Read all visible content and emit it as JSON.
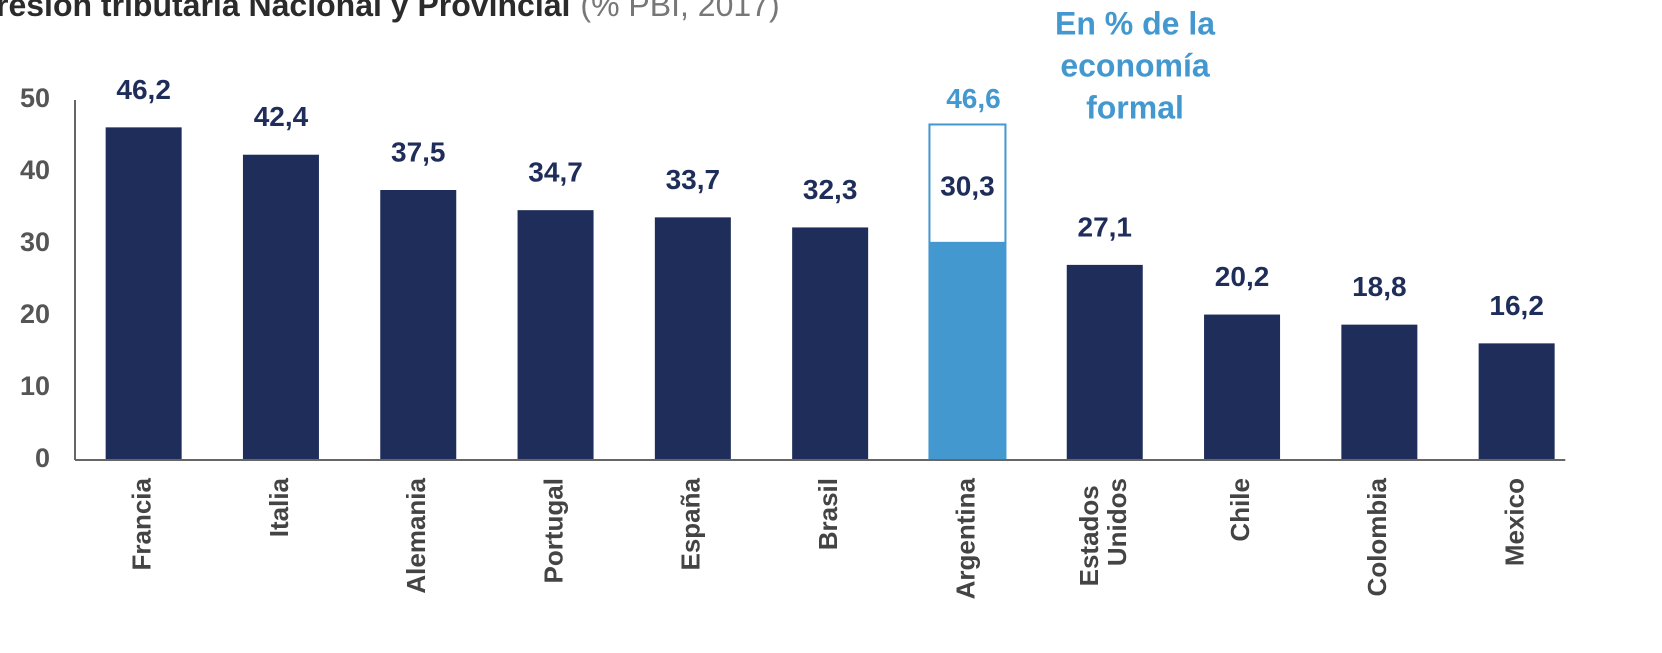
{
  "chart_data": {
    "type": "bar",
    "title": "resion tributaria Nacional y Provincial",
    "subtitle": "(% PBI, 2017)",
    "categories": [
      "Francia",
      "Italia",
      "Alemania",
      "Portugal",
      "España",
      "Brasil",
      "Argentina",
      "Estados Unidos",
      "Chile",
      "Colombia",
      "Mexico"
    ],
    "values": [
      46.2,
      42.4,
      37.5,
      34.7,
      33.7,
      32.3,
      30.3,
      27.1,
      20.2,
      18.8,
      16.2
    ],
    "value_labels": [
      "46,2",
      "42,4",
      "37,5",
      "34,7",
      "33,7",
      "32,3",
      "30,3",
      "27,1",
      "20,2",
      "18,8",
      "16,2"
    ],
    "color": "#1f2d5a",
    "ylim": [
      0,
      50
    ],
    "yticks": [
      0,
      10,
      20,
      30,
      40,
      50
    ],
    "grid": false,
    "formal_economy": {
      "lines": [
        "En % de la",
        "economía",
        "formal"
      ],
      "category": "Argentina",
      "value": 46.6,
      "value_label": "46,6",
      "color": "#4298cf"
    }
  }
}
